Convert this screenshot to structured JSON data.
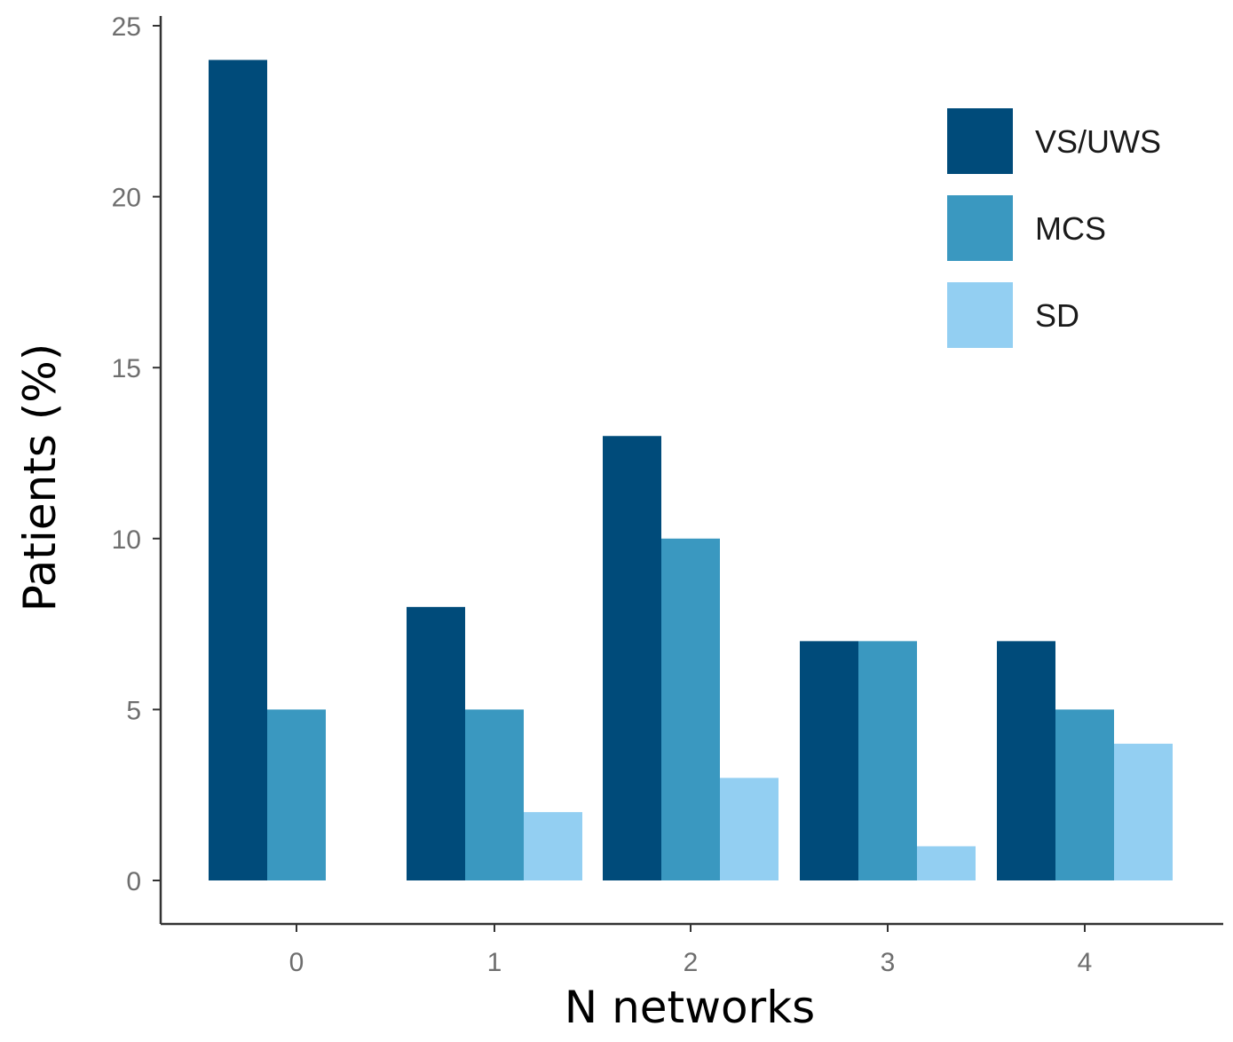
{
  "chart_data": {
    "type": "bar",
    "title": "",
    "xlabel": "N networks",
    "ylabel": "Patients (%)",
    "categories": [
      "0",
      "1",
      "2",
      "3",
      "4"
    ],
    "series": [
      {
        "name": "VS/UWS",
        "color": "#004b7a",
        "values": [
          24,
          8,
          13,
          7,
          7
        ]
      },
      {
        "name": "MCS",
        "color": "#3a98c0",
        "values": [
          5,
          5,
          10,
          7,
          5
        ]
      },
      {
        "name": "SD",
        "color": "#93cff2",
        "values": [
          0,
          2,
          3,
          1,
          4
        ]
      }
    ],
    "ylim": [
      0,
      25
    ],
    "yticks": [
      "0",
      "5",
      "10",
      "15",
      "20",
      "25"
    ],
    "grid": false,
    "legend_position": "top-right"
  }
}
